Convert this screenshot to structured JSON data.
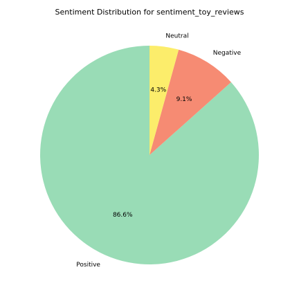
{
  "chart_data": {
    "type": "pie",
    "title": "Sentiment Distribution for sentiment_toy_reviews",
    "slices": [
      {
        "label": "Positive",
        "value": 86.6,
        "pct_label": "86.6%",
        "color": "#99dcb6"
      },
      {
        "label": "Negative",
        "value": 9.1,
        "pct_label": "9.1%",
        "color": "#f68b73"
      },
      {
        "label": "Neutral",
        "value": 4.3,
        "pct_label": "4.3%",
        "color": "#fced6b"
      }
    ],
    "start_angle_deg": 90,
    "direction": "counterclockwise",
    "legend": "none"
  }
}
